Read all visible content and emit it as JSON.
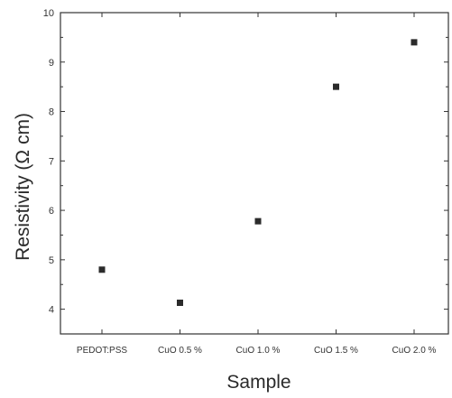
{
  "chart_data": {
    "type": "scatter",
    "title": "",
    "xlabel": "Sample",
    "ylabel": "Resistivity (Ω cm)",
    "categories": [
      "PEDOT:PSS",
      "CuO 0.5 %",
      "CuO 1.0 %",
      "CuO 1.5 %",
      "CuO 2.0 %"
    ],
    "values": [
      4.8,
      4.13,
      5.78,
      8.5,
      9.4
    ],
    "ylim": [
      3.5,
      10
    ],
    "yticks": [
      4,
      5,
      6,
      7,
      8,
      9,
      10
    ],
    "marker": "square",
    "marker_color": "#2b2b2b",
    "grid": false,
    "legend": "none"
  }
}
